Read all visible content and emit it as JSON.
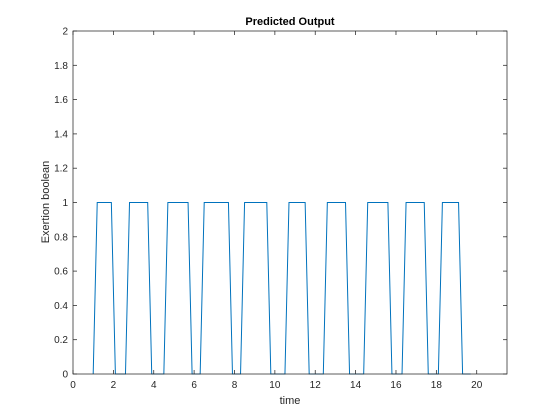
{
  "chart_data": {
    "type": "line",
    "title": "Predicted Output",
    "xlabel": "time",
    "ylabel": "Exertion boolean",
    "xlim": [
      0,
      21.5
    ],
    "ylim": [
      0,
      2
    ],
    "xticks": [
      0,
      2,
      4,
      6,
      8,
      10,
      12,
      14,
      16,
      18,
      20
    ],
    "xtick_labels": [
      "0",
      "2",
      "4",
      "6",
      "8",
      "10",
      "12",
      "14",
      "16",
      "18",
      "20"
    ],
    "yticks": [
      0,
      0.2,
      0.4,
      0.6,
      0.8,
      1,
      1.2,
      1.4,
      1.6,
      1.8,
      2
    ],
    "ytick_labels": [
      "0",
      "0.2",
      "0.4",
      "0.6",
      "0.8",
      "1",
      "1.2",
      "1.4",
      "1.6",
      "1.8",
      "2"
    ],
    "grid": false,
    "series_color": "#0072bd",
    "series": [
      {
        "x": [
          1.0,
          1.2,
          1.9,
          2.1,
          2.6,
          2.8,
          3.7,
          3.9,
          4.5,
          4.7,
          5.7,
          5.9,
          6.3,
          6.5,
          7.7,
          7.9,
          8.3,
          8.5,
          9.6,
          9.8,
          10.5,
          10.7,
          11.5,
          11.7,
          12.4,
          12.6,
          13.5,
          13.7,
          14.4,
          14.6,
          15.6,
          15.8,
          16.3,
          16.5,
          17.4,
          17.6,
          18.1,
          18.3,
          19.1,
          19.3,
          19.7
        ],
        "y": [
          0,
          1,
          1,
          0,
          0,
          1,
          1,
          0,
          0,
          1,
          1,
          0,
          0,
          1,
          1,
          0,
          0,
          1,
          1,
          0,
          0,
          1,
          1,
          0,
          0,
          1,
          1,
          0,
          0,
          1,
          1,
          0,
          0,
          1,
          1,
          0,
          0,
          1,
          1,
          0,
          0
        ]
      }
    ]
  }
}
